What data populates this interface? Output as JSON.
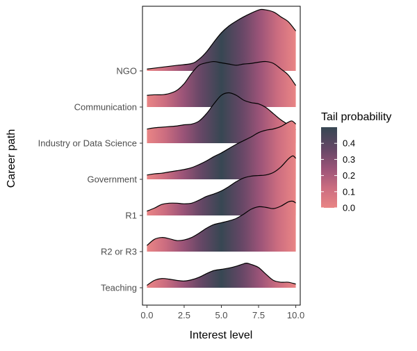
{
  "chart_data": {
    "type": "ridgeline",
    "xlabel": "Interest level",
    "ylabel": "Career path",
    "xlim": [
      -0.3,
      10.3
    ],
    "x_ticks": [
      {
        "value": 0,
        "label": "0.0"
      },
      {
        "value": 2.5,
        "label": "2.5"
      },
      {
        "value": 5,
        "label": "5.0"
      },
      {
        "value": 7.5,
        "label": "7.5"
      },
      {
        "value": 10,
        "label": "10.0"
      }
    ],
    "x_range": [
      0,
      10
    ],
    "peak_scale": 1.7,
    "fill": {
      "title": "Tail probability",
      "stops": [
        {
          "p": 0.0,
          "color": "#e98585"
        },
        {
          "p": 0.12,
          "color": "#cc6d80"
        },
        {
          "p": 0.24,
          "color": "#9c5478"
        },
        {
          "p": 0.36,
          "color": "#674766"
        },
        {
          "p": 0.5,
          "color": "#374753"
        }
      ],
      "legend_ticks": [
        {
          "value": 0.0,
          "label": "0.0"
        },
        {
          "value": 0.1,
          "label": "0.1"
        },
        {
          "value": 0.2,
          "label": "0.2"
        },
        {
          "value": 0.3,
          "label": "0.3"
        },
        {
          "value": 0.4,
          "label": "0.4"
        }
      ]
    },
    "series": [
      {
        "name": "NGO",
        "x": [
          0,
          1,
          2,
          3,
          3.5,
          4,
          4.5,
          5,
          5.5,
          6,
          6.5,
          7,
          7.5,
          7.8,
          8.5,
          9,
          9.5,
          10
        ],
        "y": [
          0.03,
          0.06,
          0.09,
          0.12,
          0.19,
          0.31,
          0.47,
          0.62,
          0.73,
          0.81,
          0.88,
          0.94,
          0.99,
          1.0,
          0.96,
          0.88,
          0.8,
          0.65
        ]
      },
      {
        "name": "Communication",
        "x": [
          0,
          0.5,
          1,
          1.5,
          2,
          2.5,
          3,
          3.5,
          4,
          4.5,
          5,
          5.5,
          6,
          6.5,
          7,
          7.5,
          8,
          8.5,
          9,
          9.5,
          10
        ],
        "y": [
          0.19,
          0.2,
          0.2,
          0.22,
          0.27,
          0.38,
          0.55,
          0.68,
          0.72,
          0.74,
          0.72,
          0.7,
          0.68,
          0.7,
          0.71,
          0.73,
          0.74,
          0.71,
          0.62,
          0.52,
          0.35
        ]
      },
      {
        "name": "Industry or Data Science",
        "x": [
          0,
          0.5,
          1,
          1.5,
          2,
          2.5,
          3,
          3.5,
          4,
          4.5,
          5,
          5.5,
          6,
          6.5,
          7,
          7.5,
          8,
          8.5,
          9,
          9.5,
          10
        ],
        "y": [
          0.23,
          0.25,
          0.26,
          0.27,
          0.28,
          0.3,
          0.31,
          0.36,
          0.48,
          0.64,
          0.78,
          0.82,
          0.78,
          0.7,
          0.66,
          0.64,
          0.58,
          0.48,
          0.38,
          0.3,
          0.22
        ]
      },
      {
        "name": "Government",
        "x": [
          0,
          0.5,
          1,
          1.5,
          2,
          2.5,
          3,
          3.5,
          4,
          4.5,
          5,
          5.5,
          6,
          6.5,
          7,
          7.5,
          8,
          8.5,
          9,
          9.5,
          9.75,
          10
        ],
        "y": [
          0.07,
          0.09,
          0.1,
          0.12,
          0.14,
          0.16,
          0.19,
          0.24,
          0.3,
          0.37,
          0.43,
          0.5,
          0.57,
          0.63,
          0.69,
          0.76,
          0.8,
          0.82,
          0.86,
          0.93,
          0.95,
          0.9
        ]
      },
      {
        "name": "R1",
        "x": [
          0,
          0.5,
          1,
          1.5,
          2,
          2.5,
          3,
          3.5,
          4,
          4.5,
          5,
          5.5,
          6,
          6.5,
          7,
          7.5,
          8,
          8.5,
          9,
          9.5,
          9.8,
          10
        ],
        "y": [
          0.07,
          0.12,
          0.18,
          0.2,
          0.2,
          0.19,
          0.2,
          0.25,
          0.31,
          0.35,
          0.4,
          0.47,
          0.55,
          0.61,
          0.64,
          0.65,
          0.66,
          0.7,
          0.79,
          0.92,
          0.97,
          0.93
        ]
      },
      {
        "name": "R2 or R3",
        "x": [
          0,
          0.5,
          1,
          1.5,
          2,
          2.5,
          3,
          3.5,
          4,
          4.5,
          5,
          5.5,
          6,
          6.5,
          7,
          7.5,
          8,
          8.5,
          9,
          9.5,
          9.8,
          10
        ],
        "y": [
          0.1,
          0.2,
          0.23,
          0.21,
          0.18,
          0.19,
          0.23,
          0.3,
          0.38,
          0.44,
          0.47,
          0.5,
          0.54,
          0.61,
          0.69,
          0.73,
          0.72,
          0.7,
          0.74,
          0.81,
          0.82,
          0.79
        ]
      },
      {
        "name": "Teaching",
        "x": [
          0,
          0.5,
          1,
          1.5,
          2,
          2.5,
          3,
          3.5,
          4,
          4.5,
          5,
          5.5,
          6,
          6.5,
          6.7,
          7,
          7.5,
          8,
          8.5,
          9,
          9.5,
          10
        ],
        "y": [
          0.04,
          0.12,
          0.15,
          0.14,
          0.12,
          0.11,
          0.13,
          0.17,
          0.23,
          0.28,
          0.3,
          0.32,
          0.35,
          0.39,
          0.4,
          0.38,
          0.33,
          0.22,
          0.12,
          0.09,
          0.09,
          0.06
        ]
      }
    ],
    "category_order_top_to_bottom": [
      "NGO",
      "Communication",
      "Industry or Data Science",
      "Government",
      "R1",
      "R2 or R3",
      "Teaching"
    ],
    "grid": false,
    "legend_position": "right"
  }
}
